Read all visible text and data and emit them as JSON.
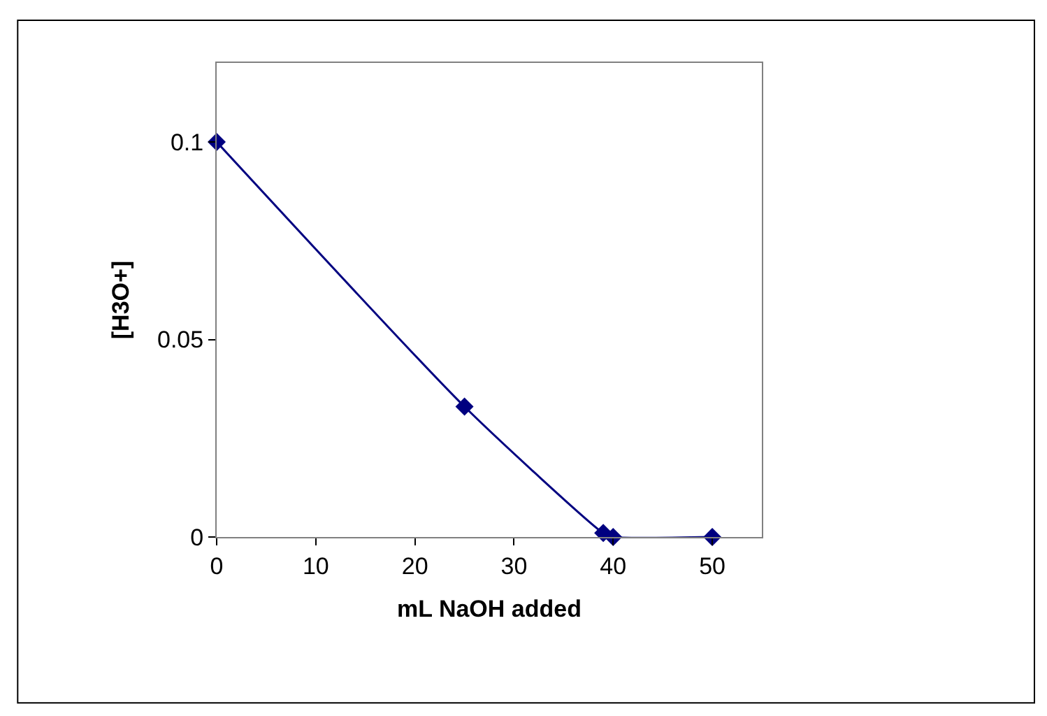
{
  "chart_data": {
    "type": "line",
    "xlabel": "mL NaOH added",
    "ylabel": "[H3O+]",
    "x": [
      0,
      25,
      39,
      40,
      50
    ],
    "series": [
      {
        "color": "#000080",
        "values": [
          0.1,
          0.033,
          0.001,
          0,
          0
        ]
      }
    ],
    "xlim": [
      0,
      55
    ],
    "xticks": [
      0,
      10,
      20,
      30,
      40,
      50
    ],
    "ylim": [
      0,
      0.12
    ],
    "yticks": [
      0,
      0.05,
      0.1
    ],
    "legend": false,
    "marker": "diamond",
    "line_style": "solid"
  }
}
